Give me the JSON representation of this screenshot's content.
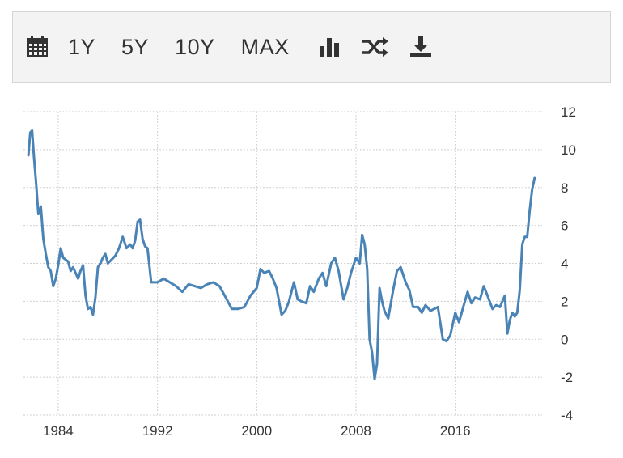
{
  "toolbar": {
    "items": [
      {
        "type": "icon",
        "icon": "calendar-icon"
      },
      {
        "type": "label",
        "label": "1Y"
      },
      {
        "type": "label",
        "label": "5Y"
      },
      {
        "type": "label",
        "label": "10Y"
      },
      {
        "type": "label",
        "label": "MAX"
      },
      {
        "type": "icon",
        "icon": "bar-chart-icon"
      },
      {
        "type": "icon",
        "icon": "shuffle-icon"
      },
      {
        "type": "icon",
        "icon": "download-icon"
      }
    ]
  },
  "colors": {
    "line": "#4a84b6",
    "grid": "#cfcfcf",
    "toolbar_bg": "#f3f3f3",
    "text": "#333333"
  },
  "chart_data": {
    "type": "line",
    "title": "",
    "xlabel": "",
    "ylabel": "",
    "xlim": [
      1981.2,
      2023.0
    ],
    "ylim": [
      -4,
      12
    ],
    "grid": true,
    "y_axis_position": "right",
    "x_ticks": [
      1984,
      1992,
      2000,
      2008,
      2016
    ],
    "y_ticks": [
      12,
      10,
      8,
      6,
      4,
      2,
      0,
      -2,
      -4
    ],
    "series": [
      {
        "name": "",
        "x": [
          1981.6,
          1981.75,
          1981.9,
          1982.05,
          1982.2,
          1982.4,
          1982.6,
          1982.8,
          1983.0,
          1983.2,
          1983.4,
          1983.6,
          1983.8,
          1984.0,
          1984.2,
          1984.4,
          1984.6,
          1984.8,
          1985.0,
          1985.2,
          1985.4,
          1985.6,
          1985.8,
          1986.0,
          1986.2,
          1986.4,
          1986.6,
          1986.8,
          1987.0,
          1987.2,
          1987.4,
          1987.6,
          1987.8,
          1988.0,
          1988.3,
          1988.6,
          1988.9,
          1989.2,
          1989.5,
          1989.8,
          1990.0,
          1990.2,
          1990.4,
          1990.6,
          1990.8,
          1991.0,
          1991.2,
          1991.5,
          1991.8,
          1992.0,
          1992.5,
          1993.0,
          1993.5,
          1994.0,
          1994.5,
          1995.0,
          1995.5,
          1996.0,
          1996.5,
          1997.0,
          1997.5,
          1998.0,
          1998.5,
          1999.0,
          1999.5,
          2000.0,
          2000.3,
          2000.6,
          2001.0,
          2001.3,
          2001.6,
          2002.0,
          2002.3,
          2002.6,
          2003.0,
          2003.3,
          2003.6,
          2004.0,
          2004.3,
          2004.6,
          2005.0,
          2005.3,
          2005.6,
          2006.0,
          2006.3,
          2006.6,
          2007.0,
          2007.3,
          2007.6,
          2008.0,
          2008.3,
          2008.5,
          2008.7,
          2008.9,
          2009.1,
          2009.3,
          2009.5,
          2009.7,
          2009.9,
          2010.1,
          2010.3,
          2010.6,
          2011.0,
          2011.3,
          2011.6,
          2012.0,
          2012.3,
          2012.6,
          2013.0,
          2013.3,
          2013.6,
          2014.0,
          2014.3,
          2014.6,
          2015.0,
          2015.3,
          2015.6,
          2016.0,
          2016.3,
          2016.6,
          2017.0,
          2017.3,
          2017.6,
          2018.0,
          2018.3,
          2018.6,
          2019.0,
          2019.3,
          2019.6,
          2020.0,
          2020.2,
          2020.4,
          2020.6,
          2020.8,
          2021.0,
          2021.2,
          2021.4,
          2021.6,
          2021.8,
          2022.0,
          2022.2,
          2022.4
        ],
        "values": [
          9.7,
          10.9,
          11.0,
          9.6,
          8.4,
          6.6,
          7.0,
          5.3,
          4.5,
          3.8,
          3.6,
          2.8,
          3.2,
          3.9,
          4.8,
          4.3,
          4.2,
          4.1,
          3.6,
          3.8,
          3.5,
          3.2,
          3.6,
          3.9,
          2.3,
          1.6,
          1.7,
          1.3,
          2.2,
          3.8,
          4.0,
          4.3,
          4.5,
          4.0,
          4.2,
          4.4,
          4.8,
          5.4,
          4.8,
          5.0,
          4.8,
          5.2,
          6.2,
          6.3,
          5.3,
          4.9,
          4.8,
          3.0,
          3.0,
          3.0,
          3.2,
          3.0,
          2.8,
          2.5,
          2.9,
          2.8,
          2.7,
          2.9,
          3.0,
          2.8,
          2.2,
          1.6,
          1.6,
          1.7,
          2.3,
          2.7,
          3.7,
          3.5,
          3.6,
          3.2,
          2.7,
          1.3,
          1.5,
          2.0,
          3.0,
          2.1,
          2.0,
          1.9,
          2.8,
          2.5,
          3.2,
          3.5,
          2.8,
          4.0,
          4.3,
          3.6,
          2.1,
          2.7,
          3.5,
          4.3,
          4.0,
          5.5,
          5.0,
          3.7,
          0.0,
          -0.7,
          -2.1,
          -1.3,
          2.7,
          2.0,
          1.5,
          1.1,
          2.6,
          3.6,
          3.8,
          3.0,
          2.6,
          1.7,
          1.7,
          1.4,
          1.8,
          1.5,
          1.6,
          1.7,
          0.0,
          -0.1,
          0.2,
          1.4,
          0.9,
          1.6,
          2.5,
          1.9,
          2.2,
          2.1,
          2.8,
          2.3,
          1.6,
          1.8,
          1.7,
          2.3,
          0.3,
          1.0,
          1.4,
          1.2,
          1.4,
          2.6,
          5.0,
          5.4,
          5.4,
          6.8,
          7.9,
          8.5
        ]
      }
    ]
  }
}
